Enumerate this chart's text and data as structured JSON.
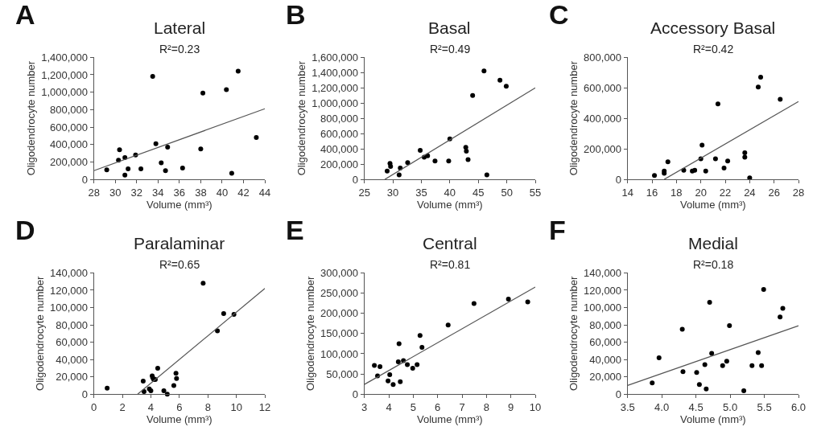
{
  "chart_data": [
    {
      "type": "scatter",
      "title": "Lateral",
      "subtitle": "R²=0.23",
      "xlabel": "Volume (mm³)",
      "ylabel": "Oligodendrocyte number",
      "annotations": [
        "A"
      ],
      "xlim": [
        28,
        44
      ],
      "xticks": [
        28,
        30,
        32,
        34,
        36,
        38,
        40,
        42,
        44
      ],
      "ylim": [
        0,
        1400000
      ],
      "yticks": [
        0,
        {
          "value": 200000,
          "label": "200,000"
        },
        {
          "value": 400000,
          "label": "400,000"
        },
        {
          "value": 600000,
          "label": "600,000"
        },
        {
          "value": 800000,
          "label": "800,000"
        },
        {
          "value": 1000000,
          "label": "1,000,000"
        },
        {
          "value": 1200000,
          "label": "1,200,000"
        },
        {
          "value": 1400000,
          "label": "1,400,000"
        }
      ],
      "series": [
        {
          "marker": "circle",
          "color": "#000000",
          "x": [
            29.2,
            30.3,
            30.4,
            30.9,
            30.9,
            31.2,
            31.9,
            32.4,
            33.5,
            33.8,
            34.3,
            34.7,
            34.9,
            36.3,
            38.0,
            38.2,
            40.4,
            40.9,
            41.5,
            43.2
          ],
          "values": [
            110000,
            220000,
            340000,
            250000,
            50000,
            120000,
            280000,
            120000,
            1180000,
            410000,
            190000,
            100000,
            370000,
            130000,
            350000,
            990000,
            1030000,
            70000,
            1240000,
            480000
          ]
        },
        {
          "type": "line",
          "marker": "none",
          "color": "#555555",
          "x": [
            28,
            44
          ],
          "values": [
            100000,
            810000
          ]
        }
      ]
    },
    {
      "type": "scatter",
      "title": "Basal",
      "subtitle": "R²=0.49",
      "xlabel": "Volume (mm³)",
      "ylabel": "Oligodendrocyte number",
      "annotations": [
        "B"
      ],
      "xlim": [
        25,
        55
      ],
      "xticks": [
        25,
        30,
        35,
        40,
        45,
        50,
        55
      ],
      "ylim": [
        0,
        1600000
      ],
      "yticks": [
        0,
        {
          "value": 200000,
          "label": "200,000"
        },
        {
          "value": 400000,
          "label": "400,000"
        },
        {
          "value": 600000,
          "label": "600,000"
        },
        {
          "value": 800000,
          "label": "800,000"
        },
        {
          "value": 1000000,
          "label": "1,000,000"
        },
        {
          "value": 1200000,
          "label": "1,200,000"
        },
        {
          "value": 1400000,
          "label": "1,400,000"
        },
        {
          "value": 1600000,
          "label": "1,600,000"
        }
      ],
      "series": [
        {
          "marker": "circle",
          "color": "#000000",
          "x": [
            29.0,
            29.5,
            29.6,
            31.1,
            31.3,
            32.6,
            34.8,
            35.5,
            36.1,
            37.4,
            39.8,
            40.0,
            42.8,
            42.9,
            43.2,
            44.0,
            46.0,
            46.5,
            48.8,
            49.9
          ],
          "values": [
            110000,
            210000,
            170000,
            60000,
            150000,
            220000,
            380000,
            290000,
            310000,
            240000,
            240000,
            530000,
            420000,
            370000,
            260000,
            1100000,
            1420000,
            60000,
            1300000,
            1220000
          ]
        },
        {
          "type": "line",
          "marker": "none",
          "color": "#555555",
          "x": [
            28.6,
            55
          ],
          "values": [
            0,
            1200000
          ]
        }
      ]
    },
    {
      "type": "scatter",
      "title": "Accessory Basal",
      "subtitle": "R²=0.42",
      "xlabel": "Volume (mm³)",
      "ylabel": "Oligodendrocyte number",
      "annotations": [
        "C"
      ],
      "xlim": [
        14,
        28
      ],
      "xticks": [
        14,
        16,
        18,
        20,
        22,
        24,
        26,
        28
      ],
      "ylim": [
        0,
        800000
      ],
      "yticks": [
        0,
        {
          "value": 200000,
          "label": "200,000"
        },
        {
          "value": 400000,
          "label": "400,000"
        },
        {
          "value": 600000,
          "label": "600,000"
        },
        {
          "value": 800000,
          "label": "800,000"
        }
      ],
      "series": [
        {
          "marker": "circle",
          "color": "#000000",
          "x": [
            16.2,
            17.0,
            17.0,
            17.3,
            18.6,
            19.3,
            19.5,
            20.0,
            20.1,
            20.4,
            21.2,
            21.4,
            21.9,
            22.2,
            23.6,
            23.6,
            24.0,
            24.7,
            24.9,
            26.5
          ],
          "values": [
            25000,
            55000,
            40000,
            115000,
            60000,
            55000,
            60000,
            135000,
            225000,
            55000,
            135000,
            495000,
            75000,
            120000,
            175000,
            145000,
            10000,
            605000,
            670000,
            525000
          ]
        },
        {
          "type": "line",
          "marker": "none",
          "color": "#555555",
          "x": [
            17.0,
            28
          ],
          "values": [
            0,
            510000
          ]
        }
      ]
    },
    {
      "type": "scatter",
      "title": "Paralaminar",
      "subtitle": "R²=0.65",
      "xlabel": "Volume (mm³)",
      "ylabel": "Oligodendrocyte number",
      "annotations": [
        "D"
      ],
      "xlim": [
        0,
        12
      ],
      "xticks": [
        0,
        2,
        4,
        6,
        8,
        10,
        12
      ],
      "ylim": [
        0,
        140000
      ],
      "yticks": [
        0,
        {
          "value": 20000,
          "label": "20,000"
        },
        {
          "value": 40000,
          "label": "40,000"
        },
        {
          "value": 60000,
          "label": "60,000"
        },
        {
          "value": 80000,
          "label": "80,000"
        },
        {
          "value": 100000,
          "label": "100,000"
        },
        {
          "value": 120000,
          "label": "120,000"
        },
        {
          "value": 140000,
          "label": "140,000"
        }
      ],
      "series": [
        {
          "marker": "circle",
          "color": "#000000",
          "x": [
            0.93,
            3.46,
            3.52,
            3.89,
            4.0,
            4.09,
            4.13,
            4.2,
            4.31,
            4.48,
            4.91,
            5.15,
            5.61,
            5.76,
            5.8,
            7.67,
            8.67,
            9.11,
            9.83
          ],
          "values": [
            7000,
            15000,
            3000,
            6000,
            4000,
            21000,
            19000,
            17000,
            17000,
            30000,
            4000,
            0,
            10000,
            24000,
            18000,
            128000,
            73000,
            93000,
            92000
          ]
        },
        {
          "type": "line",
          "marker": "none",
          "color": "#555555",
          "x": [
            3.07,
            12
          ],
          "values": [
            0,
            122000
          ]
        }
      ]
    },
    {
      "type": "scatter",
      "title": "Central",
      "subtitle": "R²=0.81",
      "xlabel": "Volume (mm³)",
      "ylabel": "Oligodendrocyte number",
      "annotations": [
        "E"
      ],
      "xlim": [
        3,
        10
      ],
      "xticks": [
        3,
        4,
        5,
        6,
        7,
        8,
        9,
        10
      ],
      "ylim": [
        0,
        300000
      ],
      "yticks": [
        0,
        {
          "value": 50000,
          "label": "50,000"
        },
        {
          "value": 100000,
          "label": "100,000"
        },
        {
          "value": 150000,
          "label": "150,000"
        },
        {
          "value": 200000,
          "label": "200,000"
        },
        {
          "value": 250000,
          "label": "250,000"
        },
        {
          "value": 300000,
          "label": "300,000"
        }
      ],
      "series": [
        {
          "marker": "circle",
          "color": "#000000",
          "x": [
            3.41,
            3.64,
            3.54,
            3.97,
            4.04,
            4.18,
            4.39,
            4.42,
            4.47,
            4.6,
            4.76,
            4.98,
            5.16,
            5.28,
            5.36,
            6.43,
            7.49,
            8.9,
            9.69
          ],
          "values": [
            71000,
            68000,
            45000,
            33000,
            48000,
            24000,
            80000,
            125000,
            31000,
            83000,
            73000,
            64000,
            73000,
            145000,
            116000,
            171000,
            224000,
            235000,
            228000
          ]
        },
        {
          "type": "line",
          "marker": "none",
          "color": "#555555",
          "x": [
            3,
            10
          ],
          "values": [
            24000,
            265000
          ]
        }
      ]
    },
    {
      "type": "scatter",
      "title": "Medial",
      "subtitle": "R²=0.18",
      "xlabel": "Volume (mm³)",
      "ylabel": "Oligodendrocyte number",
      "annotations": [
        "F"
      ],
      "xlim": [
        3.5,
        6.0
      ],
      "xticks": [
        3.5,
        {
          "value": 4,
          "label": "4.0"
        },
        4.5,
        {
          "value": 5,
          "label": "5.0"
        },
        5.5,
        {
          "value": 6,
          "label": "6.0"
        }
      ],
      "ylim": [
        0,
        140000
      ],
      "yticks": [
        0,
        {
          "value": 20000,
          "label": "20,000"
        },
        {
          "value": 40000,
          "label": "40,000"
        },
        {
          "value": 60000,
          "label": "60,000"
        },
        {
          "value": 80000,
          "label": "80,000"
        },
        {
          "value": 100000,
          "label": "100,000"
        },
        {
          "value": 120000,
          "label": "120,000"
        },
        {
          "value": 140000,
          "label": "140,000"
        }
      ],
      "series": [
        {
          "marker": "circle",
          "color": "#000000",
          "x": [
            3.86,
            3.96,
            4.3,
            4.31,
            4.51,
            4.55,
            4.63,
            4.65,
            4.7,
            4.73,
            4.89,
            4.95,
            4.99,
            5.2,
            5.32,
            5.41,
            5.46,
            5.49,
            5.73,
            5.77
          ],
          "values": [
            13000,
            42000,
            75000,
            26000,
            25000,
            11000,
            34000,
            6000,
            106000,
            47000,
            33000,
            38000,
            79000,
            4000,
            33000,
            48000,
            33000,
            121000,
            89000,
            99000
          ]
        },
        {
          "type": "line",
          "marker": "none",
          "color": "#555555",
          "x": [
            3.5,
            6.0
          ],
          "values": [
            10000,
            79000
          ]
        }
      ]
    }
  ]
}
